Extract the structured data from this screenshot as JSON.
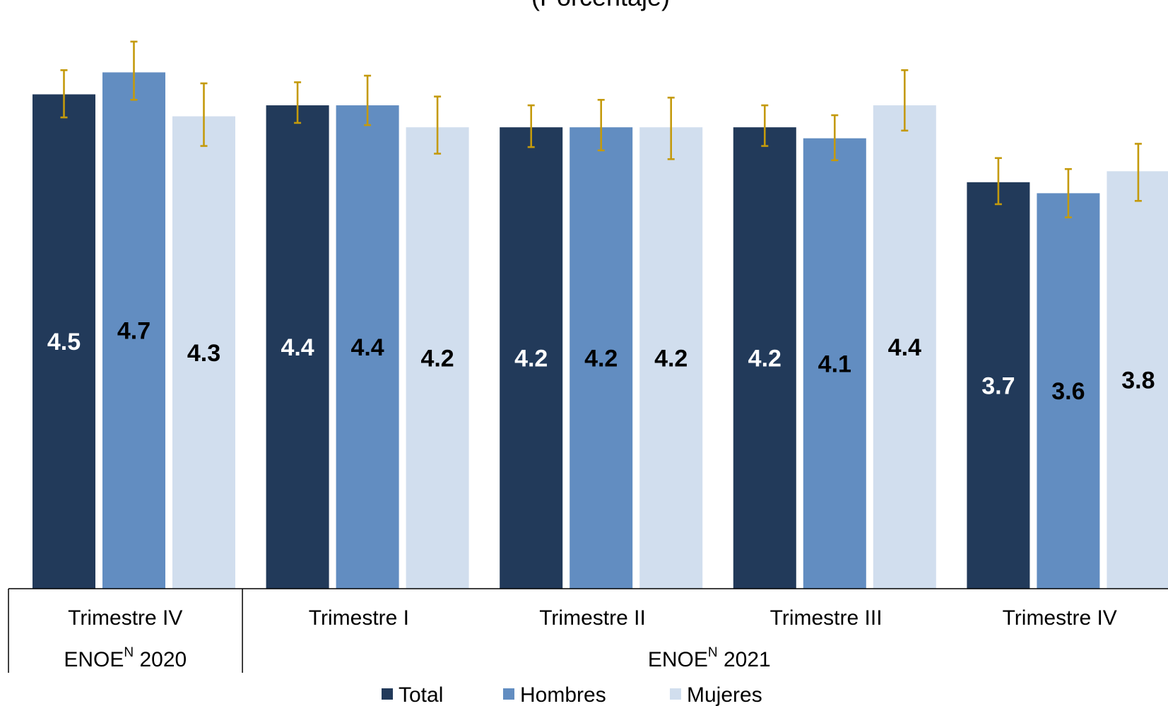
{
  "chart_data": {
    "type": "bar",
    "title": "(Porcentaje)",
    "categories": [
      "Trimestre IV",
      "Trimestre I",
      "Trimestre II",
      "Trimestre III",
      "Trimestre IV"
    ],
    "groups": [
      {
        "label": "ENOE",
        "superscript": "N",
        "year": "2020",
        "span": [
          0,
          0
        ]
      },
      {
        "label": "ENOE",
        "superscript": "N",
        "year": "2021",
        "span": [
          1,
          4
        ]
      }
    ],
    "series": [
      {
        "name": "Total",
        "color": "#223A5A",
        "values": [
          4.5,
          4.4,
          4.2,
          4.2,
          3.7
        ],
        "labels": [
          "4.5",
          "4.4",
          "4.2",
          "4.2",
          "3.7"
        ],
        "label_color": "#ffffff",
        "error_low": [
          4.29,
          4.24,
          4.02,
          4.03,
          3.5
        ],
        "error_high": [
          4.72,
          4.61,
          4.4,
          4.4,
          3.92
        ]
      },
      {
        "name": "Hombres",
        "color": "#628DC1",
        "values": [
          4.7,
          4.4,
          4.2,
          4.1,
          3.6
        ],
        "labels": [
          "4.7",
          "4.4",
          "4.2",
          "4.1",
          "3.6"
        ],
        "label_color": "#000000",
        "error_low": [
          4.45,
          4.22,
          3.99,
          3.9,
          3.38
        ],
        "error_high": [
          4.98,
          4.67,
          4.45,
          4.31,
          3.82
        ]
      },
      {
        "name": "Mujeres",
        "color": "#D1DEEE",
        "values": [
          4.3,
          4.2,
          4.2,
          4.4,
          3.8
        ],
        "labels": [
          "4.3",
          "4.2",
          "4.2",
          "4.4",
          "3.8"
        ],
        "label_color": "#000000",
        "error_low": [
          4.03,
          3.96,
          3.91,
          4.17,
          3.53
        ],
        "error_high": [
          4.6,
          4.48,
          4.47,
          4.72,
          4.05
        ]
      }
    ],
    "error_bar_color": "#C49A0C",
    "ylim": [
      0,
      5.05
    ],
    "legend_position": "bottom-center"
  }
}
